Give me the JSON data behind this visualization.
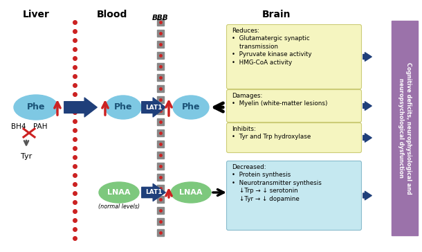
{
  "title_liver": "Liver",
  "title_blood": "Blood",
  "title_brain": "Brain",
  "bbb_label": "BBB",
  "sidebar_text": "Cognitive deficits, neurophysiological and\nneuropsychological dysfunction",
  "phe_color": "#7EC8E3",
  "lnaa_color": "#7DC87D",
  "lat1_color": "#1F3F7A",
  "arrow_blue_color": "#1F3F7A",
  "arrow_red_color": "#CC2222",
  "sidebar_color": "#9B72AA",
  "box_yellow_color": "#F5F5C0",
  "box_yellow_border": "#CCCC77",
  "box_blue_color": "#C5E8F0",
  "box_blue_border": "#88BBCC",
  "reduces_text": "Reduces:\n•  Glutamatergic synaptic\n    transmission\n•  Pyruvate kinase activity\n•  HMG-CoA activity",
  "damages_text": "Damages:\n•  Myelin (white-matter lesions)",
  "inhibits_text": "Inhibits:\n•  Tyr and Trp hydroxylase",
  "decreased_text": "Decreased:\n•  Protein synthesis\n•  Neurotransmitter synthesis\n    ↓Trp → ↓ serotonin\n    ↓Tyr → ↓ dopamine",
  "fig_width": 6.1,
  "fig_height": 3.64,
  "dpi": 100
}
